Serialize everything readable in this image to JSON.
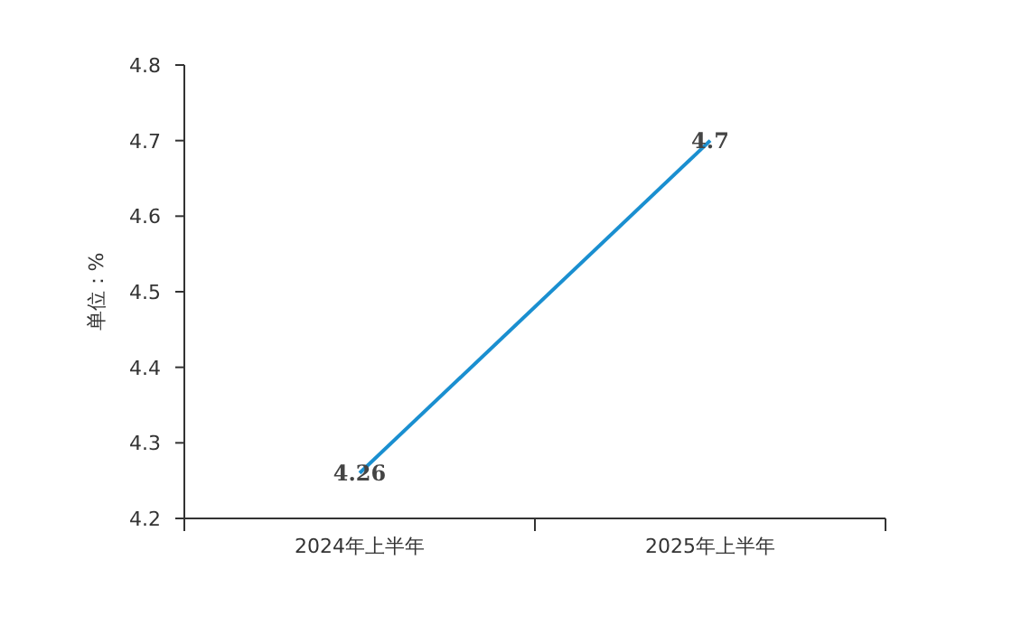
{
  "chart_data": {
    "type": "line",
    "ylabel": "单位：%",
    "categories": [
      "2024年上半年",
      "2025年上半年"
    ],
    "series": [
      {
        "color": "#1a8fd0",
        "values": [
          4.26,
          4.7
        ]
      }
    ],
    "ylim": [
      4.2,
      4.8
    ],
    "yticks": [
      4.2,
      4.3,
      4.4,
      4.5,
      4.6,
      4.7,
      4.8
    ],
    "data_labels": true,
    "marker": "none"
  }
}
